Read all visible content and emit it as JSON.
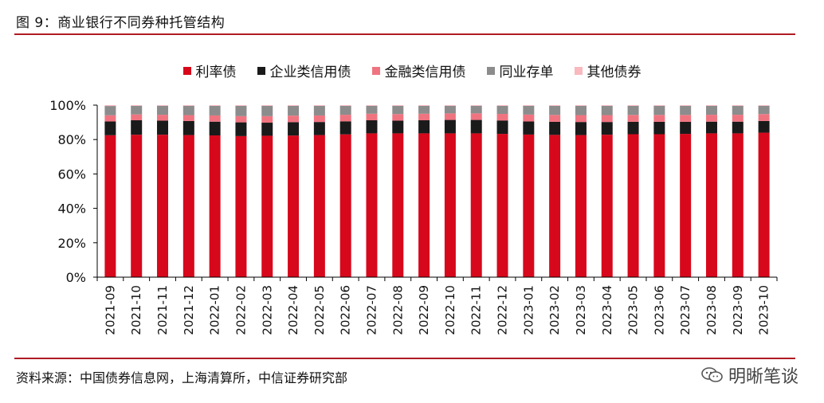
{
  "figure_title": "图 9：商业银行不同券种托管结构",
  "source": "资料来源：中国债券信息网，上海清算所，中信证券研究部",
  "watermark": "明晰笔谈",
  "chart_data": {
    "type": "bar",
    "stacked": true,
    "percent": true,
    "ylim": [
      0,
      100
    ],
    "yticks": [
      "0%",
      "20%",
      "40%",
      "60%",
      "80%",
      "100%"
    ],
    "legend_position": "top",
    "categories": [
      "2021-09",
      "2021-10",
      "2021-11",
      "2021-12",
      "2022-01",
      "2022-02",
      "2022-03",
      "2022-04",
      "2022-05",
      "2022-06",
      "2022-07",
      "2022-08",
      "2022-09",
      "2022-10",
      "2022-11",
      "2022-12",
      "2023-01",
      "2023-02",
      "2023-03",
      "2023-04",
      "2023-05",
      "2023-06",
      "2023-07",
      "2023-08",
      "2023-09",
      "2023-10"
    ],
    "series": [
      {
        "name": "利率债",
        "color": "#d7081b",
        "values": [
          82.5,
          82.8,
          82.8,
          82.6,
          82.4,
          82.0,
          82.2,
          82.3,
          82.6,
          83.0,
          83.6,
          83.6,
          83.6,
          83.6,
          83.6,
          83.3,
          82.9,
          82.7,
          82.6,
          82.8,
          83.1,
          83.1,
          83.3,
          83.6,
          83.6,
          84.0
        ]
      },
      {
        "name": "企业类信用债",
        "color": "#1a1a1a",
        "values": [
          8.0,
          8.4,
          8.2,
          8.2,
          8.0,
          8.0,
          7.6,
          7.8,
          7.6,
          7.6,
          7.6,
          7.4,
          7.6,
          7.8,
          7.8,
          7.8,
          7.6,
          7.6,
          7.6,
          7.4,
          7.2,
          7.2,
          7.0,
          6.8,
          6.8,
          6.8
        ]
      },
      {
        "name": "金融类信用债",
        "color": "#f07480",
        "values": [
          3.6,
          3.4,
          3.4,
          3.4,
          3.6,
          3.6,
          3.8,
          3.8,
          3.8,
          3.8,
          3.8,
          3.8,
          3.8,
          3.8,
          3.8,
          3.8,
          4.0,
          4.0,
          4.0,
          4.0,
          4.0,
          4.0,
          4.0,
          4.0,
          4.0,
          4.0
        ]
      },
      {
        "name": "同业存单",
        "color": "#8c8c8c",
        "values": [
          5.4,
          5.0,
          5.2,
          5.4,
          5.6,
          6.0,
          6.0,
          5.7,
          5.6,
          5.2,
          4.6,
          4.8,
          4.6,
          4.4,
          4.4,
          4.7,
          5.1,
          5.3,
          5.4,
          5.4,
          5.3,
          5.3,
          5.3,
          5.2,
          5.2,
          4.8
        ]
      },
      {
        "name": "其他债券",
        "color": "#f9b9bf",
        "values": [
          0.5,
          0.4,
          0.4,
          0.4,
          0.4,
          0.4,
          0.4,
          0.4,
          0.4,
          0.4,
          0.4,
          0.4,
          0.4,
          0.4,
          0.4,
          0.4,
          0.4,
          0.4,
          0.4,
          0.4,
          0.4,
          0.4,
          0.4,
          0.4,
          0.4,
          0.4
        ]
      }
    ]
  }
}
